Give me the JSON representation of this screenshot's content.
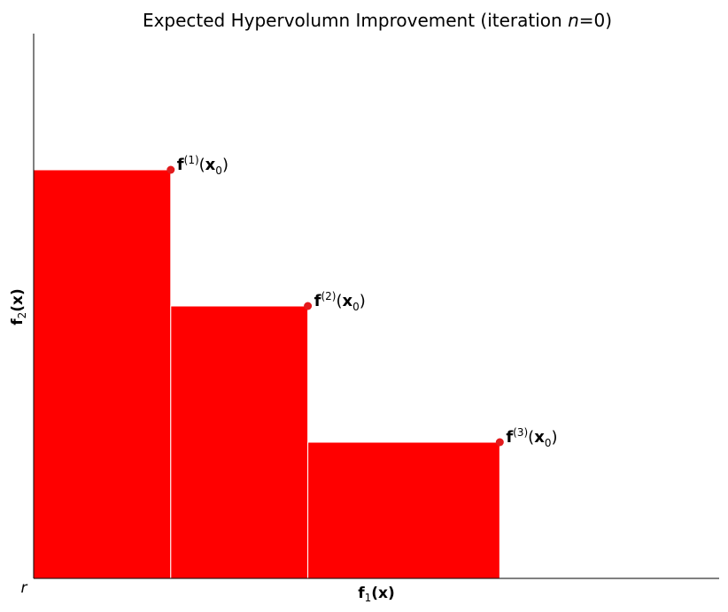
{
  "chart_data": {
    "type": "area",
    "title": {
      "prefix": "Expected Hypervolumn Improvement (iteration ",
      "var": "n",
      "suffix": "=0)"
    },
    "xlabel": {
      "base": "f",
      "sub": "1",
      "arg": "(x)"
    },
    "ylabel": {
      "base": "f",
      "sub": "2",
      "arg": "(x)"
    },
    "reference_label": "r",
    "xlim": [
      0,
      10
    ],
    "ylim": [
      0,
      8
    ],
    "grid": false,
    "fill_color": "#ff0000",
    "point_color": "#e31a1c",
    "points": [
      {
        "x": 2.0,
        "y": 6.0,
        "label": {
          "base": "f",
          "sup": "(1)",
          "arg": "x",
          "sub": "0"
        }
      },
      {
        "x": 4.0,
        "y": 4.0,
        "label": {
          "base": "f",
          "sup": "(2)",
          "arg": "x",
          "sub": "0"
        }
      },
      {
        "x": 6.8,
        "y": 2.0,
        "label": {
          "base": "f",
          "sup": "(3)",
          "arg": "x",
          "sub": "0"
        }
      }
    ]
  }
}
